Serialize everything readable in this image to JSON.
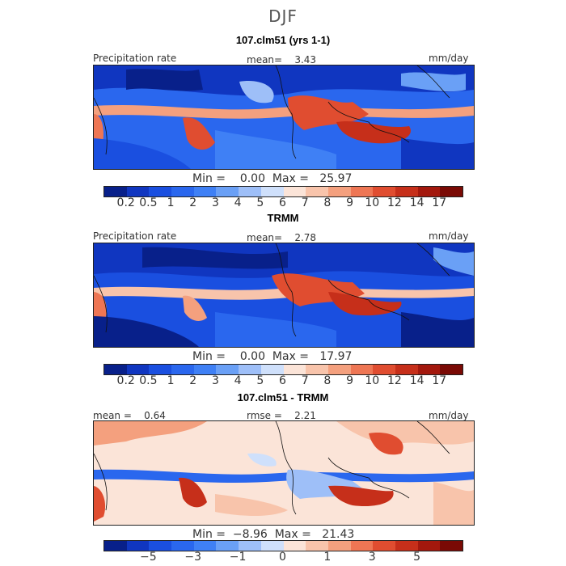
{
  "title": "DJF",
  "panels": [
    {
      "subtitle": "107.clm51 (yrs 1-1)",
      "left_label": "Precipitation rate",
      "center_label": "mean=    3.43",
      "units": "mm/day",
      "min_max": "Min =    0.00  Max =   25.97",
      "colorbar": {
        "colors": [
          "#08208a",
          "#1036c0",
          "#1a4fe0",
          "#2a67ee",
          "#3f80f5",
          "#6aa0f6",
          "#9ebff8",
          "#cfe0fb",
          "#fbe4d8",
          "#f8c4ab",
          "#f4a07e",
          "#ee7654",
          "#e04d30",
          "#c62f1a",
          "#a3180d",
          "#7a0a05"
        ],
        "ticks": [
          "0.2",
          "0.5",
          "1",
          "2",
          "3",
          "4",
          "5",
          "6",
          "7",
          "8",
          "9",
          "10",
          "12",
          "14",
          "17"
        ]
      }
    },
    {
      "subtitle": "TRMM",
      "left_label": "Precipitation rate",
      "center_label": "mean=    2.78",
      "units": "mm/day",
      "min_max": "Min =    0.00  Max =   17.97",
      "colorbar": {
        "colors": [
          "#08208a",
          "#1036c0",
          "#1a4fe0",
          "#2a67ee",
          "#3f80f5",
          "#6aa0f6",
          "#9ebff8",
          "#cfe0fb",
          "#fbe4d8",
          "#f8c4ab",
          "#f4a07e",
          "#ee7654",
          "#e04d30",
          "#c62f1a",
          "#a3180d",
          "#7a0a05"
        ],
        "ticks": [
          "0.2",
          "0.5",
          "1",
          "2",
          "3",
          "4",
          "5",
          "6",
          "7",
          "8",
          "9",
          "10",
          "12",
          "14",
          "17"
        ]
      }
    },
    {
      "subtitle": "107.clm51 - TRMM",
      "left_label": "mean =    0.64",
      "center_label": "rmse =    2.21",
      "units": "mm/day",
      "min_max": "Min =  −8.96  Max =   21.43",
      "colorbar": {
        "colors": [
          "#08208a",
          "#1036c0",
          "#1a4fe0",
          "#2a67ee",
          "#3f80f5",
          "#6aa0f6",
          "#9ebff8",
          "#cfe0fb",
          "#fbe4d8",
          "#f8c4ab",
          "#f4a07e",
          "#ee7654",
          "#e04d30",
          "#c62f1a",
          "#a3180d",
          "#7a0a05"
        ],
        "ticks": [
          "−5",
          "−3",
          "−1",
          "0",
          "1",
          "3",
          "5"
        ]
      }
    }
  ]
}
